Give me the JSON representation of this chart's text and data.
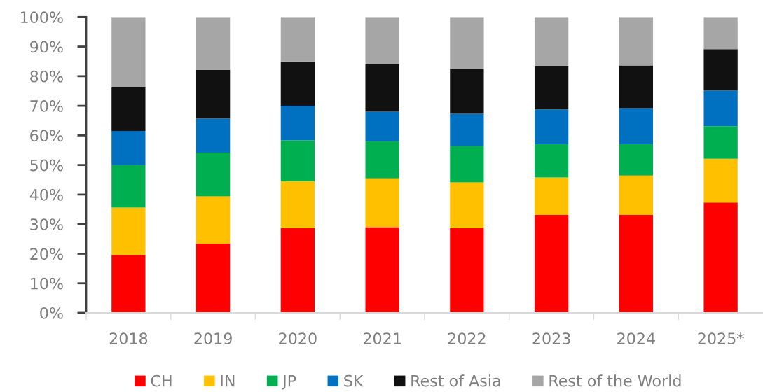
{
  "chart_data": {
    "type": "bar",
    "stacked": true,
    "categories": [
      "2018",
      "2019",
      "2020",
      "2021",
      "2022",
      "2023",
      "2024",
      "2025*"
    ],
    "series": [
      {
        "name": "CH",
        "color": "#ff0000",
        "values": [
          19.6,
          23.4,
          28.7,
          29.0,
          28.6,
          33.1,
          33.1,
          37.3
        ]
      },
      {
        "name": "IN",
        "color": "#ffc000",
        "values": [
          16.0,
          16.0,
          15.8,
          16.5,
          15.5,
          12.7,
          13.3,
          14.8
        ]
      },
      {
        "name": "JP",
        "color": "#00b050",
        "values": [
          14.4,
          14.8,
          13.8,
          12.5,
          12.4,
          11.2,
          10.6,
          11.0
        ]
      },
      {
        "name": "SK",
        "color": "#0070c0",
        "values": [
          11.5,
          11.5,
          11.7,
          10.0,
          10.8,
          11.8,
          12.2,
          12.1
        ]
      },
      {
        "name": "Rest of Asia",
        "color": "#111111",
        "values": [
          14.7,
          16.4,
          15.0,
          16.0,
          15.2,
          14.6,
          14.4,
          13.9
        ]
      },
      {
        "name": "Rest of the World",
        "color": "#a6a6a6",
        "values": [
          23.8,
          17.9,
          15.0,
          16.0,
          17.5,
          16.6,
          16.4,
          10.9
        ]
      }
    ],
    "ylim": [
      0,
      100
    ],
    "yticks": [
      {
        "value": 0,
        "label": "0%"
      },
      {
        "value": 10,
        "label": "10%"
      },
      {
        "value": 20,
        "label": "20%"
      },
      {
        "value": 30,
        "label": "30%"
      },
      {
        "value": 40,
        "label": "40%"
      },
      {
        "value": 50,
        "label": "50%"
      },
      {
        "value": 60,
        "label": "60%"
      },
      {
        "value": 70,
        "label": "70%"
      },
      {
        "value": 80,
        "label": "80%"
      },
      {
        "value": 90,
        "label": "90%"
      },
      {
        "value": 100,
        "label": "100%"
      }
    ],
    "grid": false,
    "legend": "bottom"
  }
}
